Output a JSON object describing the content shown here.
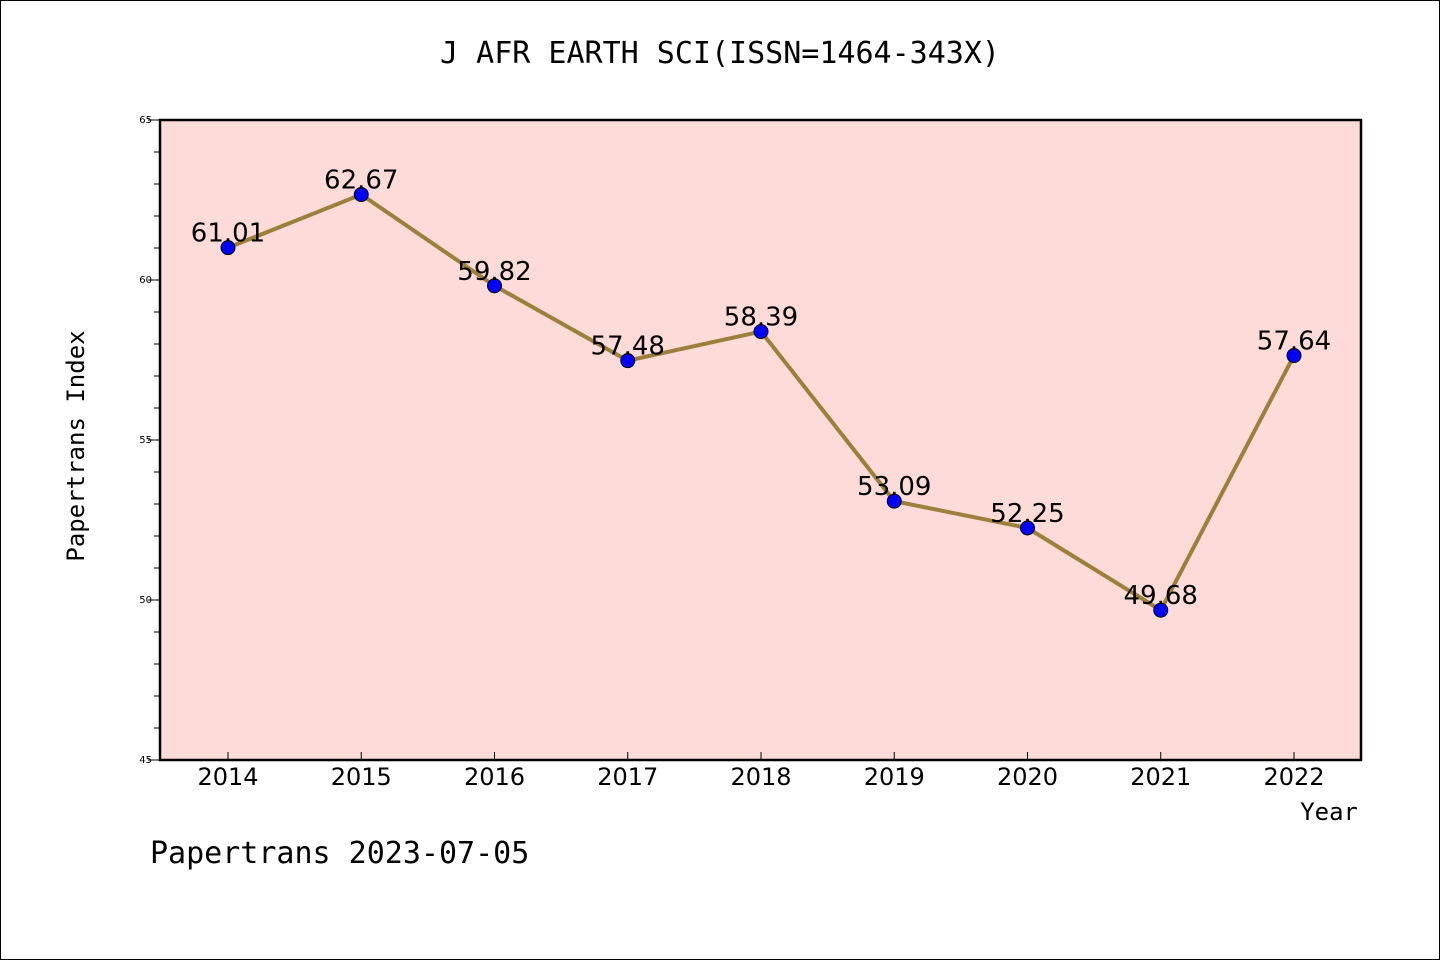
{
  "title": "J AFR EARTH SCI(ISSN=1464-343X)",
  "footer": "Papertrans 2023-07-05",
  "colors": {
    "plot_bg": "#fddbd8",
    "line": "#9b7f3a",
    "marker": "#0000ff",
    "axis": "#000000"
  },
  "chart_data": {
    "type": "line",
    "title": "J AFR EARTH SCI(ISSN=1464-343X)",
    "xlabel": "Year",
    "ylabel": "Papertrans Index",
    "x": [
      "2014",
      "2015",
      "2016",
      "2017",
      "2018",
      "2019",
      "2020",
      "2021",
      "2022"
    ],
    "series": [
      {
        "values": [
          61.01,
          62.67,
          59.82,
          57.48,
          58.39,
          53.09,
          52.25,
          49.68,
          57.64
        ]
      }
    ],
    "data_labels": [
      "61.01",
      "62.67",
      "59.82",
      "57.48",
      "58.39",
      "53.09",
      "52.25",
      "49.68",
      "57.64"
    ],
    "ylim": [
      45,
      65
    ],
    "yticks": [
      "45",
      "50",
      "55",
      "60",
      "65"
    ],
    "grid": false,
    "legend": "none"
  }
}
